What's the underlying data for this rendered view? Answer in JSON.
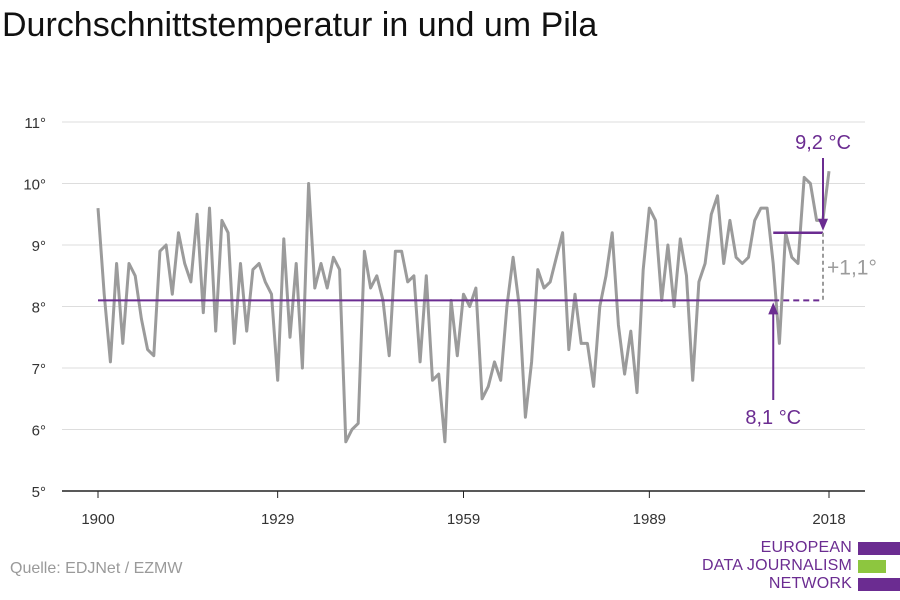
{
  "title": "Durchschnittstemperatur in und um Pila",
  "source": "Quelle: EDJNet / EZMW",
  "logo": {
    "line1": "EUROPEAN",
    "line2": "DATA JOURNALISM",
    "line3": "NETWORK"
  },
  "colors": {
    "series": "#9b9b9b",
    "accent": "#6b2c91",
    "grid": "#dddddd",
    "logo_green": "#8dc63f",
    "logo_purple": "#6b2c91"
  },
  "chart_data": {
    "type": "line",
    "title": "Durchschnittstemperatur in und um Pila",
    "xlabel": "",
    "ylabel": "",
    "ylim": [
      5,
      11
    ],
    "xlim": [
      1900,
      2018
    ],
    "x_ticks": [
      1900,
      1929,
      1959,
      1989,
      2018
    ],
    "y_ticks": [
      5,
      6,
      7,
      8,
      9,
      10,
      11
    ],
    "y_tick_labels": [
      "5°",
      "6°",
      "7°",
      "8°",
      "9°",
      "10°",
      "11°"
    ],
    "grid": true,
    "series": [
      {
        "x_start": 1900,
        "values": [
          9.6,
          8.2,
          7.1,
          8.7,
          7.4,
          8.7,
          8.5,
          7.8,
          7.3,
          7.2,
          8.9,
          9.0,
          8.2,
          9.2,
          8.7,
          8.4,
          9.5,
          7.9,
          9.6,
          7.6,
          9.4,
          9.2,
          7.4,
          8.7,
          7.6,
          8.6,
          8.7,
          8.4,
          8.2,
          6.8,
          9.1,
          7.5,
          8.7,
          7.0,
          10.0,
          8.3,
          8.7,
          8.3,
          8.8,
          8.6,
          5.8,
          6.0,
          6.1,
          8.9,
          8.3,
          8.5,
          8.1,
          7.2,
          8.9,
          8.9,
          8.4,
          8.5,
          7.1,
          8.5,
          6.8,
          6.9,
          5.8,
          8.1,
          7.2,
          8.2,
          8.0,
          8.3,
          6.5,
          6.7,
          7.1,
          6.8,
          8.0,
          8.8,
          8.0,
          6.2,
          7.1,
          8.6,
          8.3,
          8.4,
          8.8,
          9.2,
          7.3,
          8.2,
          7.4,
          7.4,
          6.7,
          8.0,
          8.5,
          9.2,
          7.7,
          6.9,
          7.6,
          6.6,
          8.6,
          9.6,
          9.4,
          8.1,
          9.0,
          8.0,
          9.1,
          8.5,
          6.8,
          8.4,
          8.7,
          9.5,
          9.8,
          8.7,
          9.4,
          8.8,
          8.7,
          8.8,
          9.4,
          9.6,
          9.6,
          8.7,
          7.4,
          9.2,
          8.8,
          8.7,
          10.1,
          10.0,
          9.4,
          9.4,
          10.2
        ]
      }
    ],
    "reference_lines": [
      {
        "label": "8,1 °C",
        "value": 8.1,
        "x_from": 1900,
        "x_to": 2018
      },
      {
        "label": "9,2 °C",
        "value": 9.2,
        "x_from": 2009,
        "x_to": 2018
      }
    ],
    "difference_label": "+1,1°"
  }
}
